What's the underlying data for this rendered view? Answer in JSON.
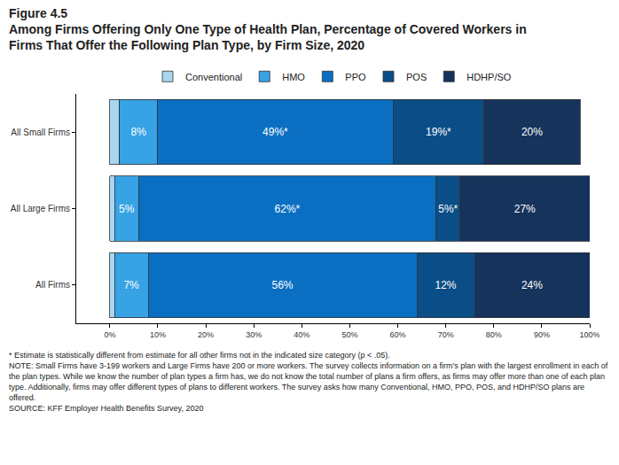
{
  "chart_data": {
    "type": "bar",
    "orientation": "horizontal",
    "stacked": true,
    "title": "Figure 4.5",
    "subtitle": "Among Firms Offering Only One Type of Health Plan, Percentage of Covered Workers in Firms That Offer the Following Plan Type, by Firm Size, 2020",
    "categories": [
      "All Small Firms",
      "All Large Firms",
      "All Firms"
    ],
    "series": [
      {
        "name": "Conventional",
        "color": "#a9d5f0",
        "values": [
          2,
          1,
          1
        ]
      },
      {
        "name": "HMO",
        "color": "#37a2e4",
        "values": [
          8,
          5,
          7
        ],
        "value_labels": [
          "8%",
          "5%",
          "7%"
        ]
      },
      {
        "name": "PPO",
        "color": "#0a6fc2",
        "values": [
          49,
          62,
          56
        ],
        "value_labels": [
          "49%*",
          "62%*",
          "56%"
        ]
      },
      {
        "name": "POS",
        "color": "#0b4d86",
        "values": [
          19,
          5,
          12
        ],
        "value_labels": [
          "19%*",
          "5%*",
          "12%"
        ]
      },
      {
        "name": "HDHP/SO",
        "color": "#15335b",
        "values": [
          20,
          27,
          24
        ],
        "value_labels": [
          "20%",
          "27%",
          "24%"
        ]
      }
    ],
    "xlim": [
      -7,
      100
    ],
    "xticks": [
      {
        "value": 0,
        "label": "0%"
      },
      {
        "value": 10,
        "label": "10%"
      },
      {
        "value": 20,
        "label": "20%"
      },
      {
        "value": 30,
        "label": "30%"
      },
      {
        "value": 40,
        "label": "40%"
      },
      {
        "value": 50,
        "label": "50%"
      },
      {
        "value": 60,
        "label": "60%"
      },
      {
        "value": 70,
        "label": "70%"
      },
      {
        "value": 80,
        "label": "80%"
      },
      {
        "value": 90,
        "label": "90%"
      },
      {
        "value": 100,
        "label": "100%"
      }
    ],
    "grid": false,
    "legend": "top",
    "data_labels": true,
    "annotations": [
      "* Estimate is statistically different from estimate for all other firms not in the indicated size category (p < .05).",
      "NOTE: Small Firms have 3-199 workers and Large Firms have 200 or more workers. The survey collects information on a firm's plan with the largest enrollment in each of the plan types. While we know the number of plan types a firm has, we do not know the total number of plans a firm offers, as firms may offer more than one of each plan type. Additionally, firms may offer different types of plans to different workers. The survey asks how many Conventional, HMO, PPO, POS, and HDHP/SO plans are offered.",
      "SOURCE: KFF Employer Health Benefits Survey, 2020"
    ]
  }
}
